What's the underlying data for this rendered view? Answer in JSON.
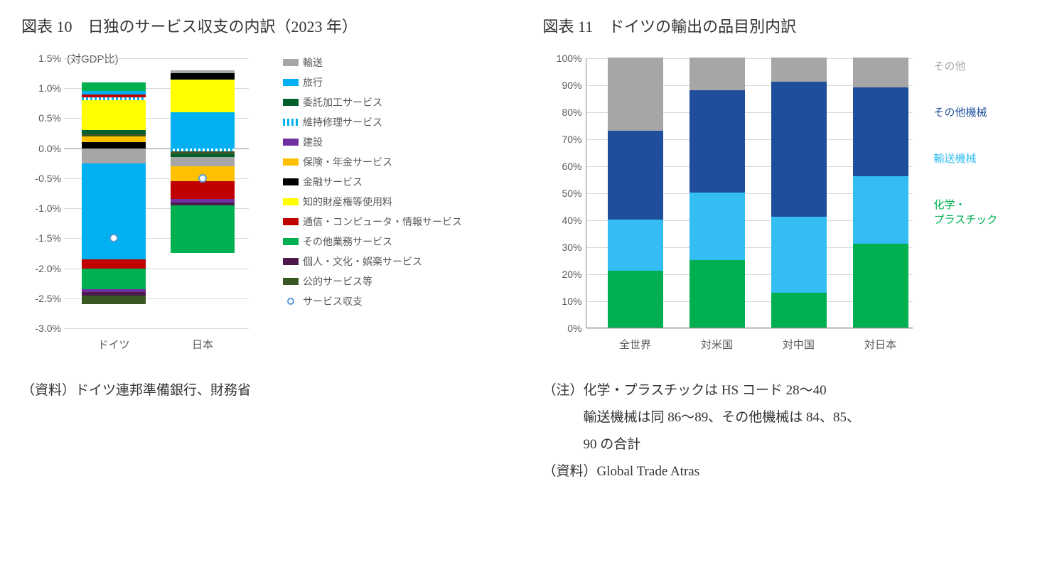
{
  "chart10": {
    "title": "図表 10　日独のサービス収支の内訳（2023 年）",
    "type": "stacked-bar-diverging",
    "gdp_label": "(対GDP比)",
    "y": {
      "min": -3.0,
      "max": 1.5,
      "step": 0.5
    },
    "y_ticks": [
      "1.5%",
      "1.0%",
      "0.5%",
      "0.0%",
      "-0.5%",
      "-1.0%",
      "-1.5%",
      "-2.0%",
      "-2.5%",
      "-3.0%"
    ],
    "categories": [
      "ドイツ",
      "日本"
    ],
    "series": [
      {
        "key": "transport",
        "label": "輸送",
        "color": "#a6a6a6",
        "pattern": "solid"
      },
      {
        "key": "travel",
        "label": "旅行",
        "color": "#00b0f0",
        "pattern": "solid"
      },
      {
        "key": "processing",
        "label": "委託加工サービス",
        "color": "#00602b",
        "pattern": "solid"
      },
      {
        "key": "repair",
        "label": "維持修理サービス",
        "color": "#00b0f0",
        "pattern": "dash-h"
      },
      {
        "key": "construct",
        "label": "建設",
        "color": "#7030a0",
        "pattern": "solid"
      },
      {
        "key": "insurance",
        "label": "保険・年金サービス",
        "color": "#ffc000",
        "pattern": "solid"
      },
      {
        "key": "finance",
        "label": "金融サービス",
        "color": "#000000",
        "pattern": "solid"
      },
      {
        "key": "ip",
        "label": "知的財産権等使用料",
        "color": "#ffff00",
        "pattern": "solid"
      },
      {
        "key": "ict",
        "label": "通信・コンピュータ・情報サービス",
        "color": "#c00000",
        "pattern": "solid"
      },
      {
        "key": "otherbiz",
        "label": "その他業務サービス",
        "color": "#00b050",
        "pattern": "solid"
      },
      {
        "key": "personal",
        "label": "個人・文化・娯楽サービス",
        "color": "#4d194d",
        "pattern": "solid"
      },
      {
        "key": "public",
        "label": "公的サービス等",
        "color": "#385723",
        "pattern": "solid"
      },
      {
        "key": "balance",
        "label": "サービス収支",
        "color": "#ffffff",
        "pattern": "marker"
      }
    ],
    "data": {
      "ドイツ": {
        "pos": [
          {
            "key": "finance",
            "v": 0.1
          },
          {
            "key": "insurance",
            "v": 0.1
          },
          {
            "key": "public",
            "v": 0.05
          },
          {
            "key": "processing",
            "v": 0.05
          },
          {
            "key": "ip",
            "v": 0.5
          },
          {
            "key": "repair",
            "v": 0.05
          },
          {
            "key": "ict",
            "v": 0.05
          },
          {
            "key": "travel",
            "v": 0.05
          },
          {
            "key": "otherbiz",
            "v": 0.15
          }
        ],
        "neg": [
          {
            "key": "transport",
            "v": -0.25
          },
          {
            "key": "travel",
            "v": -1.6
          },
          {
            "key": "ict",
            "v": -0.15
          },
          {
            "key": "otherbiz",
            "v": -0.35
          },
          {
            "key": "construct",
            "v": -0.05
          },
          {
            "key": "personal",
            "v": -0.05
          },
          {
            "key": "public",
            "v": -0.15
          }
        ],
        "balance": -1.5
      },
      "日本": {
        "pos": [
          {
            "key": "travel",
            "v": 0.6
          },
          {
            "key": "ip",
            "v": 0.55
          },
          {
            "key": "finance",
            "v": 0.1
          },
          {
            "key": "transport",
            "v": 0.05
          }
        ],
        "neg": [
          {
            "key": "repair",
            "v": -0.05
          },
          {
            "key": "public",
            "v": -0.05
          },
          {
            "key": "processing",
            "v": -0.05
          },
          {
            "key": "transport",
            "v": -0.15
          },
          {
            "key": "insurance",
            "v": -0.25
          },
          {
            "key": "ict",
            "v": -0.3
          },
          {
            "key": "construct",
            "v": -0.05
          },
          {
            "key": "personal",
            "v": -0.05
          },
          {
            "key": "otherbiz",
            "v": -0.8
          }
        ],
        "balance": -0.5
      }
    },
    "note_source": "（資料）ドイツ連邦準備銀行、財務省"
  },
  "chart11": {
    "title": "図表 11　ドイツの輸出の品目別内訳",
    "type": "stacked-bar-100",
    "y_ticks": [
      "0%",
      "10%",
      "20%",
      "30%",
      "40%",
      "50%",
      "60%",
      "70%",
      "80%",
      "90%",
      "100%"
    ],
    "categories": [
      "全世界",
      "対米国",
      "対中国",
      "対日本"
    ],
    "series": [
      {
        "key": "chem",
        "label": "化学・\nプラスチック",
        "color": "#00b050"
      },
      {
        "key": "transport",
        "label": "輸送機械",
        "color": "#33bdf2"
      },
      {
        "key": "othermach",
        "label": "その他機械",
        "color": "#1f4e9c"
      },
      {
        "key": "other",
        "label": "その他",
        "color": "#a6a6a6"
      }
    ],
    "data": {
      "全世界": {
        "chem": 21,
        "transport": 19,
        "othermach": 33,
        "other": 27
      },
      "対米国": {
        "chem": 25,
        "transport": 25,
        "othermach": 38,
        "other": 12
      },
      "対中国": {
        "chem": 13,
        "transport": 28,
        "othermach": 50,
        "other": 9
      },
      "対日本": {
        "chem": 31,
        "transport": 25,
        "othermach": 33,
        "other": 11
      }
    },
    "notes": [
      "（注）化学・プラスチックは HS コード 28～40",
      "　　　輸送機械は同 86～89、その他機械は 84、85、",
      "　　　90 の合計",
      "（資料）Global Trade Atras"
    ]
  },
  "style": {
    "title_fontsize": 22,
    "axis_fontsize": 14,
    "note_fontsize": 19,
    "font_family_title": "serif",
    "font_family_chart": "sans-serif",
    "background": "#ffffff",
    "grid_color": "#d9d9d9",
    "axis_color": "#888888",
    "text_color": "#595959"
  }
}
